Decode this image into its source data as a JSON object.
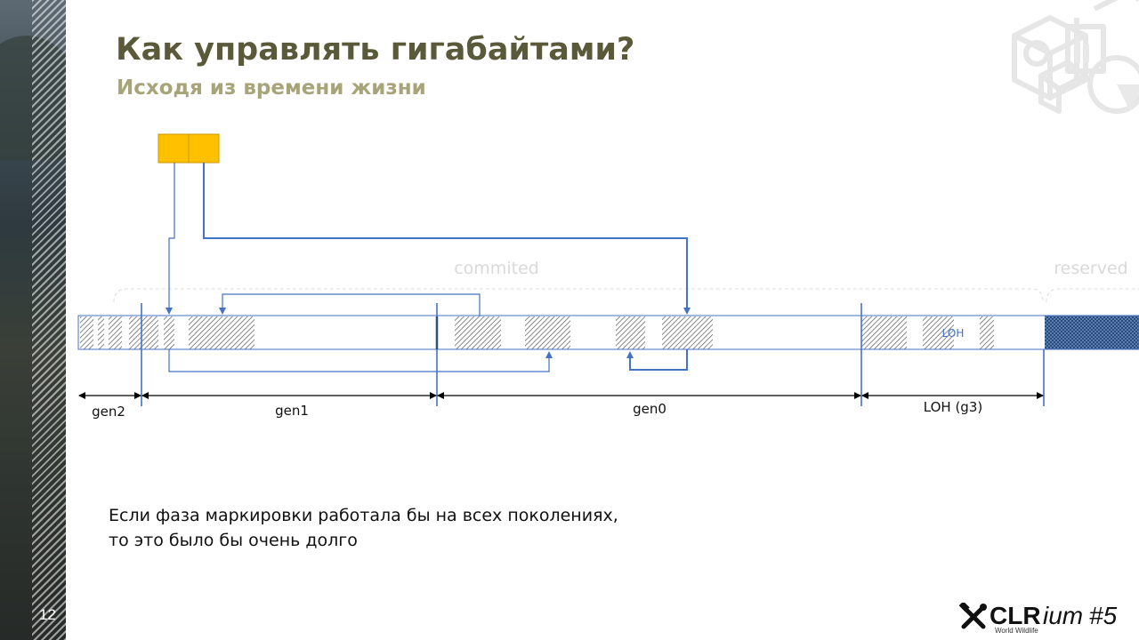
{
  "slide": {
    "page_number": "12",
    "title": "Как управлять гигабайтами?",
    "subtitle": "Исходя из времени жизни",
    "body_lines": [
      "Если фаза маркировки работала бы на всех поколениях,",
      "то это было бы очень долго"
    ]
  },
  "diagram": {
    "region_labels": {
      "commited": "commited",
      "reserved": "reserved"
    },
    "heap_label": "LOH",
    "generations": [
      "gen2",
      "gen1",
      "gen0",
      "LOH (g3)"
    ]
  },
  "logo": {
    "clr": "CLR",
    "ium": "ium",
    "num": "#5",
    "tagline": "World Wildlife"
  },
  "colors": {
    "accent_blue": "#4472c4",
    "object_yellow": "#ffc000",
    "title": "#5a5a3a",
    "subtitle": "#a8a47a"
  }
}
